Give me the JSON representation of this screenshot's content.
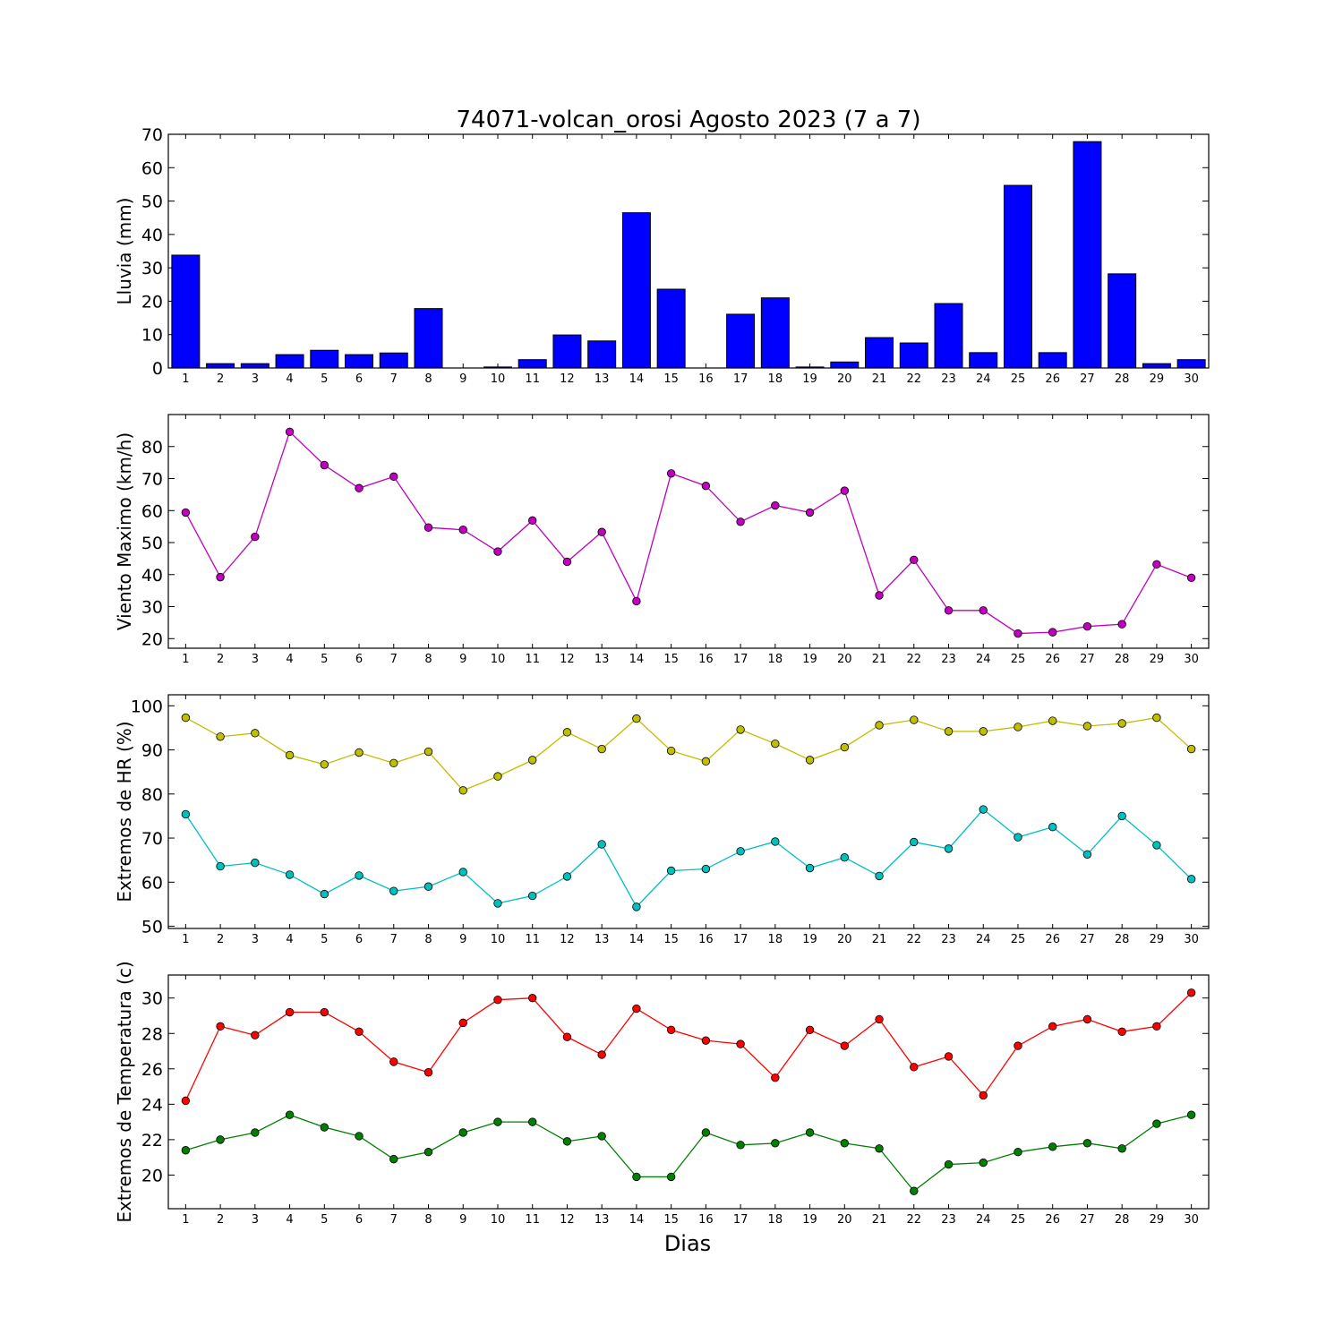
{
  "title": "74071-volcan_orosi Agosto 2023  (7 a 7)",
  "xlabel": "Dias",
  "colors": {
    "rain": "#0000ff",
    "wind": "#bf00bf",
    "hr_max": "#bfbf00",
    "hr_min": "#00bfbf",
    "temp_max": "#ff0000",
    "temp_min": "#008000"
  },
  "chart_data": [
    {
      "type": "bar",
      "ylabel": "Lluvia (mm)",
      "ylim": [
        0,
        70
      ],
      "yticks": [
        0,
        10,
        20,
        30,
        40,
        50,
        60,
        70
      ],
      "categories": [
        "1",
        "2",
        "3",
        "4",
        "5",
        "6",
        "7",
        "8",
        "9",
        "10",
        "11",
        "12",
        "13",
        "14",
        "15",
        "16",
        "17",
        "18",
        "19",
        "20",
        "21",
        "22",
        "23",
        "24",
        "25",
        "26",
        "27",
        "28",
        "29",
        "30"
      ],
      "series": [
        {
          "color": "#0000ff",
          "values": [
            33.8,
            1.3,
            1.3,
            4.0,
            5.3,
            4.0,
            4.5,
            17.8,
            0.0,
            0.3,
            2.5,
            9.9,
            8.1,
            46.5,
            23.6,
            0.0,
            16.1,
            21.0,
            0.3,
            1.8,
            9.1,
            7.5,
            19.3,
            4.6,
            54.7,
            4.6,
            67.8,
            28.2,
            1.3,
            2.5
          ]
        }
      ]
    },
    {
      "type": "line",
      "ylabel": "Viento Maximo (km/h)",
      "ylim": [
        17,
        90
      ],
      "yticks": [
        20,
        30,
        40,
        50,
        60,
        70,
        80
      ],
      "x": [
        1,
        2,
        3,
        4,
        5,
        6,
        7,
        8,
        9,
        10,
        11,
        12,
        13,
        14,
        15,
        16,
        17,
        18,
        19,
        20,
        21,
        22,
        23,
        24,
        25,
        26,
        27,
        28,
        29,
        30
      ],
      "series": [
        {
          "color": "#bf00bf",
          "values": [
            59.4,
            39.2,
            51.8,
            84.6,
            74.2,
            67.0,
            70.6,
            54.7,
            54.0,
            47.2,
            56.9,
            44.0,
            53.3,
            31.7,
            71.6,
            67.7,
            56.5,
            61.6,
            59.4,
            66.2,
            33.5,
            44.6,
            28.8,
            28.8,
            21.6,
            22.0,
            23.8,
            24.5,
            43.2,
            39.0
          ]
        }
      ]
    },
    {
      "type": "line",
      "ylabel": "Extremos de HR (%)",
      "ylim": [
        49.5,
        102.5
      ],
      "yticks": [
        50,
        60,
        70,
        80,
        90,
        100
      ],
      "x": [
        1,
        2,
        3,
        4,
        5,
        6,
        7,
        8,
        9,
        10,
        11,
        12,
        13,
        14,
        15,
        16,
        17,
        18,
        19,
        20,
        21,
        22,
        23,
        24,
        25,
        26,
        27,
        28,
        29,
        30
      ],
      "series": [
        {
          "color": "#bfbf00",
          "values": [
            97.3,
            93.0,
            93.8,
            88.8,
            86.7,
            89.4,
            87.0,
            89.6,
            80.8,
            84.0,
            87.7,
            94.0,
            90.2,
            97.1,
            89.8,
            87.4,
            94.6,
            91.4,
            87.7,
            90.6,
            95.6,
            96.8,
            94.2,
            94.2,
            95.2,
            96.6,
            95.4,
            96.0,
            97.3,
            90.2
          ]
        },
        {
          "color": "#00bfbf",
          "values": [
            75.4,
            63.6,
            64.4,
            61.7,
            57.3,
            61.5,
            58.0,
            59.0,
            62.3,
            55.2,
            56.9,
            61.3,
            68.6,
            54.4,
            62.6,
            63.0,
            67.0,
            69.2,
            63.2,
            65.6,
            61.4,
            69.1,
            67.6,
            76.5,
            70.2,
            72.5,
            66.3,
            75.0,
            68.4,
            60.7
          ]
        }
      ]
    },
    {
      "type": "line",
      "ylabel": "Extremos de Temperatura (c)",
      "ylim": [
        18.1,
        31.3
      ],
      "yticks": [
        20,
        22,
        24,
        26,
        28,
        30
      ],
      "x": [
        1,
        2,
        3,
        4,
        5,
        6,
        7,
        8,
        9,
        10,
        11,
        12,
        13,
        14,
        15,
        16,
        17,
        18,
        19,
        20,
        21,
        22,
        23,
        24,
        25,
        26,
        27,
        28,
        29,
        30
      ],
      "series": [
        {
          "color": "#ff0000",
          "values": [
            24.2,
            28.4,
            27.9,
            29.2,
            29.2,
            28.1,
            26.4,
            25.8,
            28.6,
            29.9,
            30.0,
            27.8,
            26.8,
            29.4,
            28.2,
            27.6,
            27.4,
            25.5,
            28.2,
            27.3,
            28.8,
            26.1,
            26.7,
            24.5,
            27.3,
            28.4,
            28.8,
            28.1,
            28.4,
            30.3
          ]
        },
        {
          "color": "#008000",
          "values": [
            21.4,
            22.0,
            22.4,
            23.4,
            22.7,
            22.2,
            20.9,
            21.3,
            22.4,
            23.0,
            23.0,
            21.9,
            22.2,
            19.9,
            19.9,
            22.4,
            21.7,
            21.8,
            22.4,
            21.8,
            21.5,
            19.1,
            20.6,
            20.7,
            21.3,
            21.6,
            21.8,
            21.5,
            22.9,
            23.4
          ]
        }
      ]
    }
  ]
}
